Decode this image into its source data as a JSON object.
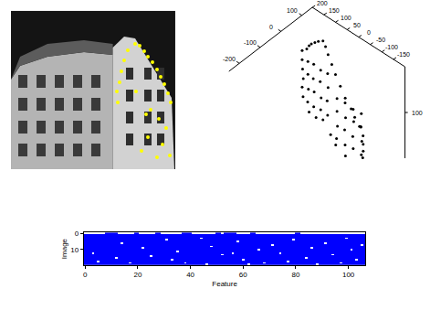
{
  "chart_data": [
    {
      "type": "image",
      "color": "#ffff00",
      "tick_labels": false,
      "xlim": [
        0,
        180
      ],
      "ylim": [
        0,
        173
      ],
      "x": [
        136,
        141,
        146,
        150,
        155,
        160,
        164,
        168,
        172,
        175,
        128,
        124,
        121,
        119,
        116,
        117,
        148,
        162,
        170,
        150,
        166,
        143,
        160,
        174,
        153,
        137
      ],
      "y": [
        36,
        38,
        44,
        50,
        56,
        64,
        72,
        80,
        90,
        100,
        43,
        54,
        66,
        78,
        88,
        100,
        113,
        118,
        128,
        138,
        146,
        153,
        160,
        158,
        108,
        88
      ]
    },
    {
      "type": "scatter3d",
      "color": "#000000",
      "xlim": [
        -250,
        150
      ],
      "ylim": [
        -200,
        200
      ],
      "zlim": [
        -100,
        300
      ],
      "xticks": [
        -200,
        -100,
        0,
        100
      ],
      "yticks": [
        200,
        150,
        100,
        50,
        0,
        -50,
        -100,
        -150
      ],
      "zticks": [
        100
      ],
      "x": [
        90,
        90,
        90,
        90,
        90,
        90,
        90,
        90,
        90,
        90,
        90,
        90,
        80,
        70,
        60,
        50,
        40,
        30,
        25,
        20,
        15,
        10,
        5,
        5,
        5,
        5,
        5,
        5,
        90,
        90,
        90,
        90,
        90,
        90,
        90,
        90,
        90,
        90,
        90,
        90,
        90,
        90,
        90,
        90,
        35,
        35,
        35,
        35,
        35,
        35,
        35,
        35,
        35,
        35,
        35,
        35,
        35,
        35,
        35,
        35,
        90,
        90,
        90,
        60,
        40,
        20
      ],
      "y": [
        190,
        190,
        188,
        185,
        190,
        186,
        170,
        160,
        150,
        135,
        120,
        100,
        80,
        60,
        35,
        10,
        -20,
        -50,
        -80,
        -100,
        -125,
        -145,
        -150,
        -150,
        -148,
        -150,
        -145,
        -140,
        165,
        165,
        163,
        166,
        140,
        142,
        138,
        140,
        110,
        112,
        108,
        110,
        80,
        78,
        82,
        80,
        -10,
        -10,
        -12,
        -8,
        -45,
        -47,
        -43,
        -45,
        -80,
        -82,
        -78,
        -80,
        -115,
        -113,
        -117,
        -115,
        160,
        130,
        100,
        40,
        0,
        -60
      ],
      "z": [
        40,
        80,
        120,
        160,
        200,
        240,
        20,
        0,
        -15,
        -30,
        -45,
        -60,
        -55,
        -40,
        -20,
        0,
        25,
        50,
        75,
        95,
        115,
        140,
        170,
        200,
        230,
        260,
        285,
        100,
        72,
        128,
        192,
        250,
        68,
        132,
        188,
        254,
        74,
        126,
        194,
        248,
        70,
        130,
        190,
        252,
        82,
        138,
        202,
        258,
        78,
        142,
        198,
        262,
        84,
        136,
        204,
        256,
        80,
        140,
        200,
        260,
        290,
        295,
        285,
        290,
        295,
        290
      ]
    },
    {
      "type": "heatmap",
      "color": "#0000ff",
      "xlabel": "Feature",
      "ylabel": "Image",
      "n_images": 20,
      "xlim": [
        -0.5,
        106.5
      ],
      "ylim": [
        -0.5,
        19.5
      ],
      "xticks": [
        0,
        20,
        40,
        60,
        80,
        100
      ],
      "yticks": [
        0,
        10
      ],
      "first_image": [
        1,
        1,
        1,
        1,
        1,
        1,
        1,
        1,
        0,
        0,
        0,
        0,
        0,
        1,
        1,
        1,
        1,
        1,
        1,
        0,
        0,
        1,
        1,
        1,
        1,
        1,
        1,
        0,
        0,
        1,
        1,
        1,
        1,
        1,
        1,
        1,
        1,
        0,
        0,
        0,
        0,
        1,
        1,
        1,
        1,
        1,
        1,
        1,
        1,
        1,
        0,
        0,
        1,
        0,
        0,
        0,
        0,
        0,
        1,
        1,
        1,
        1,
        1,
        0,
        0,
        1,
        1,
        1,
        1,
        1,
        1,
        1,
        1,
        1,
        1,
        1,
        1,
        1,
        1,
        1,
        0,
        0,
        1,
        1,
        1,
        1,
        1,
        1,
        1,
        1,
        1,
        1,
        1,
        1,
        1,
        1,
        1,
        1,
        1,
        1,
        1,
        1,
        1,
        1,
        1,
        1,
        1
      ],
      "missing": [
        [
          3,
          12
        ],
        [
          5,
          17
        ],
        [
          14,
          6
        ],
        [
          17,
          18
        ],
        [
          22,
          9
        ],
        [
          25,
          14
        ],
        [
          31,
          4
        ],
        [
          33,
          16
        ],
        [
          35,
          11
        ],
        [
          44,
          3
        ],
        [
          46,
          19
        ],
        [
          48,
          8
        ],
        [
          52,
          13
        ],
        [
          58,
          5
        ],
        [
          60,
          16
        ],
        [
          66,
          10
        ],
        [
          68,
          18
        ],
        [
          71,
          7
        ],
        [
          74,
          12
        ],
        [
          77,
          17
        ],
        [
          79,
          4
        ],
        [
          84,
          15
        ],
        [
          86,
          9
        ],
        [
          88,
          19
        ],
        [
          91,
          6
        ],
        [
          94,
          13
        ],
        [
          97,
          18
        ],
        [
          99,
          3
        ],
        [
          101,
          10
        ],
        [
          103,
          16
        ],
        [
          105,
          7
        ],
        [
          38,
          18
        ],
        [
          62,
          19
        ],
        [
          56,
          12
        ],
        [
          12,
          15
        ]
      ]
    }
  ]
}
